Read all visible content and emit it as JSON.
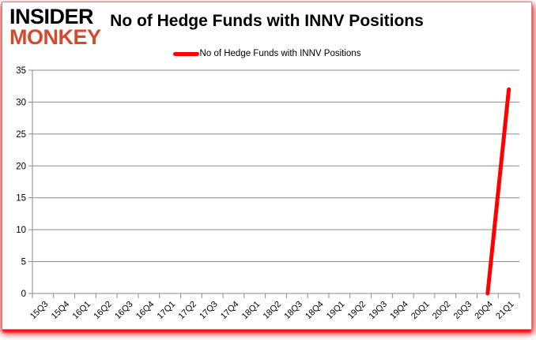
{
  "logo": {
    "line1": "INSIDER",
    "line2": "MONKEY"
  },
  "title": "No of Hedge Funds with INNV Positions",
  "legend": {
    "label": "No of Hedge Funds with INNV Positions"
  },
  "colors": {
    "series_red": "#ff0000",
    "logo_insider": "#000000",
    "logo_monkey": "#d34a2e",
    "gridline": "#8a8a8a",
    "axis": "#8a8a8a",
    "label": "#000000",
    "frame_border": "#9a9a9a",
    "frame_glow": "#ff0000",
    "background": "#ffffff"
  },
  "chart_data": {
    "type": "line",
    "title": "No of Hedge Funds with INNV Positions",
    "series_name": "No of Hedge Funds with INNV Positions",
    "series_color": "#ff0000",
    "categories": [
      "15Q3",
      "15Q4",
      "16Q1",
      "16Q2",
      "16Q3",
      "16Q4",
      "17Q1",
      "17Q2",
      "17Q3",
      "17Q4",
      "18Q1",
      "18Q2",
      "18Q3",
      "18Q4",
      "19Q1",
      "19Q2",
      "19Q3",
      "19Q4",
      "20Q1",
      "20Q2",
      "20Q3",
      "20Q4",
      "21Q1"
    ],
    "values": [
      null,
      null,
      null,
      null,
      null,
      null,
      null,
      null,
      null,
      null,
      null,
      null,
      null,
      null,
      null,
      null,
      null,
      null,
      null,
      null,
      null,
      0,
      32
    ],
    "ylim": [
      0,
      35
    ],
    "yticks": [
      0,
      5,
      10,
      15,
      20,
      25,
      30,
      35
    ],
    "grid": true,
    "legend_position": "top-center"
  }
}
